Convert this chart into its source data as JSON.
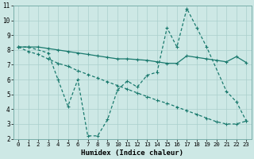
{
  "xlabel": "Humidex (Indice chaleur)",
  "xlim": [
    -0.5,
    23.5
  ],
  "ylim": [
    2,
    11
  ],
  "xticks": [
    0,
    1,
    2,
    3,
    4,
    5,
    6,
    7,
    8,
    9,
    10,
    11,
    12,
    13,
    14,
    15,
    16,
    17,
    18,
    19,
    20,
    21,
    22,
    23
  ],
  "yticks": [
    2,
    3,
    4,
    5,
    6,
    7,
    8,
    9,
    10,
    11
  ],
  "bg_color": "#cde8e5",
  "grid_color": "#aacfcc",
  "line_color": "#1a7a6e",
  "line1_x": [
    0,
    1,
    2,
    3,
    4,
    5,
    6,
    7,
    8,
    9,
    10,
    11,
    12,
    13,
    14,
    15,
    16,
    17,
    18,
    19,
    20,
    21,
    22,
    23
  ],
  "line1_y": [
    8.2,
    8.2,
    8.2,
    8.1,
    8.0,
    7.9,
    7.8,
    7.7,
    7.6,
    7.5,
    7.4,
    7.4,
    7.35,
    7.3,
    7.2,
    7.1,
    7.1,
    7.6,
    7.5,
    7.4,
    7.3,
    7.2,
    7.55,
    7.15
  ],
  "line2_x": [
    0,
    1,
    3,
    4,
    5,
    6,
    7,
    8,
    9,
    10,
    11,
    12,
    13,
    14,
    15,
    16,
    17,
    18,
    19,
    21,
    22,
    23
  ],
  "line2_y": [
    8.2,
    8.2,
    7.8,
    6.0,
    4.2,
    6.0,
    2.2,
    2.2,
    3.3,
    5.3,
    5.9,
    5.5,
    6.3,
    6.5,
    9.5,
    8.2,
    10.8,
    9.5,
    8.2,
    5.2,
    4.5,
    3.2
  ],
  "line3_x": [
    0,
    1,
    2,
    3,
    4,
    5,
    6,
    7,
    8,
    9,
    10,
    11,
    12,
    13,
    14,
    15,
    16,
    17,
    18,
    19,
    20,
    21,
    22,
    23
  ],
  "line3_y": [
    8.2,
    7.9,
    7.7,
    7.4,
    7.1,
    6.9,
    6.6,
    6.35,
    6.1,
    5.85,
    5.6,
    5.35,
    5.1,
    4.85,
    4.6,
    4.4,
    4.15,
    3.9,
    3.65,
    3.4,
    3.15,
    3.0,
    3.0,
    3.2
  ]
}
